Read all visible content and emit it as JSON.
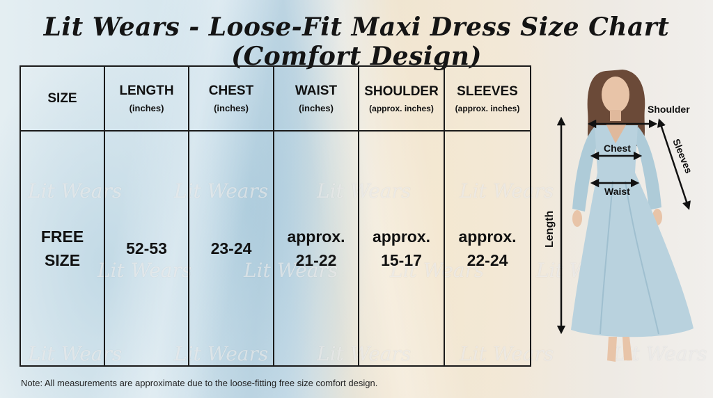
{
  "title": "Lit Wears - Loose-Fit Maxi Dress Size Chart (Comfort Design)",
  "table": {
    "headers": [
      {
        "label": "SIZE",
        "sub": ""
      },
      {
        "label": "LENGTH",
        "sub": "(inches)"
      },
      {
        "label": "CHEST",
        "sub": "(inches)"
      },
      {
        "label": "WAIST",
        "sub": "(inches)"
      },
      {
        "label": "SHOULDER",
        "sub": "(approx. inches)"
      },
      {
        "label": "SLEEVES",
        "sub": "(approx. inches)"
      }
    ],
    "row": {
      "size_line1": "FREE",
      "size_line2": "SIZE",
      "length": "52-53",
      "chest": "23-24",
      "waist_line1": "approx.",
      "waist_line2": "21-22",
      "shoulder_line1": "approx.",
      "shoulder_line2": "15-17",
      "sleeves_line1": "approx.",
      "sleeves_line2": "22-24"
    }
  },
  "watermark_text": "Lit Wears",
  "note": "Note: All measurements are approximate due to the loose-fitting free size comfort design.",
  "figure": {
    "shoulder": "Shoulder",
    "sleeves": "Sleeves",
    "chest": "Chest",
    "waist": "Waist",
    "length": "Length"
  },
  "colors": {
    "dress": "#b9d2de",
    "skin": "#e8c4a8",
    "hair": "#6b4a38",
    "border": "#1a1a1a"
  }
}
